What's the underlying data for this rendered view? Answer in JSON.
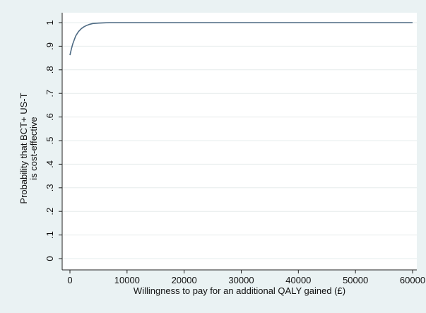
{
  "chart_data": {
    "type": "line",
    "title": "",
    "xlabel": "Willingness to pay for an additional QALY gained (£)",
    "ylabel_lines": [
      "Probability that BCT+ US-T",
      "is cost-effective"
    ],
    "xlim": [
      0,
      60000
    ],
    "ylim": [
      0,
      1
    ],
    "x_ticks": [
      0,
      10000,
      20000,
      30000,
      40000,
      50000,
      60000
    ],
    "x_tick_labels": [
      "0",
      "10000",
      "20000",
      "30000",
      "40000",
      "50000",
      "60000"
    ],
    "y_ticks": [
      0,
      0.1,
      0.2,
      0.3,
      0.4,
      0.5,
      0.6,
      0.7,
      0.8,
      0.9,
      1
    ],
    "y_tick_labels": [
      "0",
      ".1",
      ".2",
      ".3",
      ".4",
      ".5",
      ".6",
      ".7",
      ".8",
      ".9",
      "1"
    ],
    "grid": true,
    "legend": "none",
    "colors": {
      "line": "#4d6a83",
      "grid": "#e6ecec",
      "plot_bg": "#ffffff",
      "outer_bg": "#eaf2f3"
    },
    "series": [
      {
        "x": [
          0,
          250,
          500,
          1000,
          1500,
          2000,
          2500,
          3000,
          3500,
          4000,
          5000,
          6000,
          7000,
          8000,
          10000,
          20000,
          30000,
          40000,
          50000,
          60000
        ],
        "y": [
          0.862,
          0.888,
          0.91,
          0.943,
          0.962,
          0.975,
          0.983,
          0.989,
          0.993,
          0.996,
          0.998,
          0.999,
          1.0,
          1.0,
          1.0,
          1.0,
          1.0,
          1.0,
          1.0,
          1.0
        ]
      }
    ]
  }
}
